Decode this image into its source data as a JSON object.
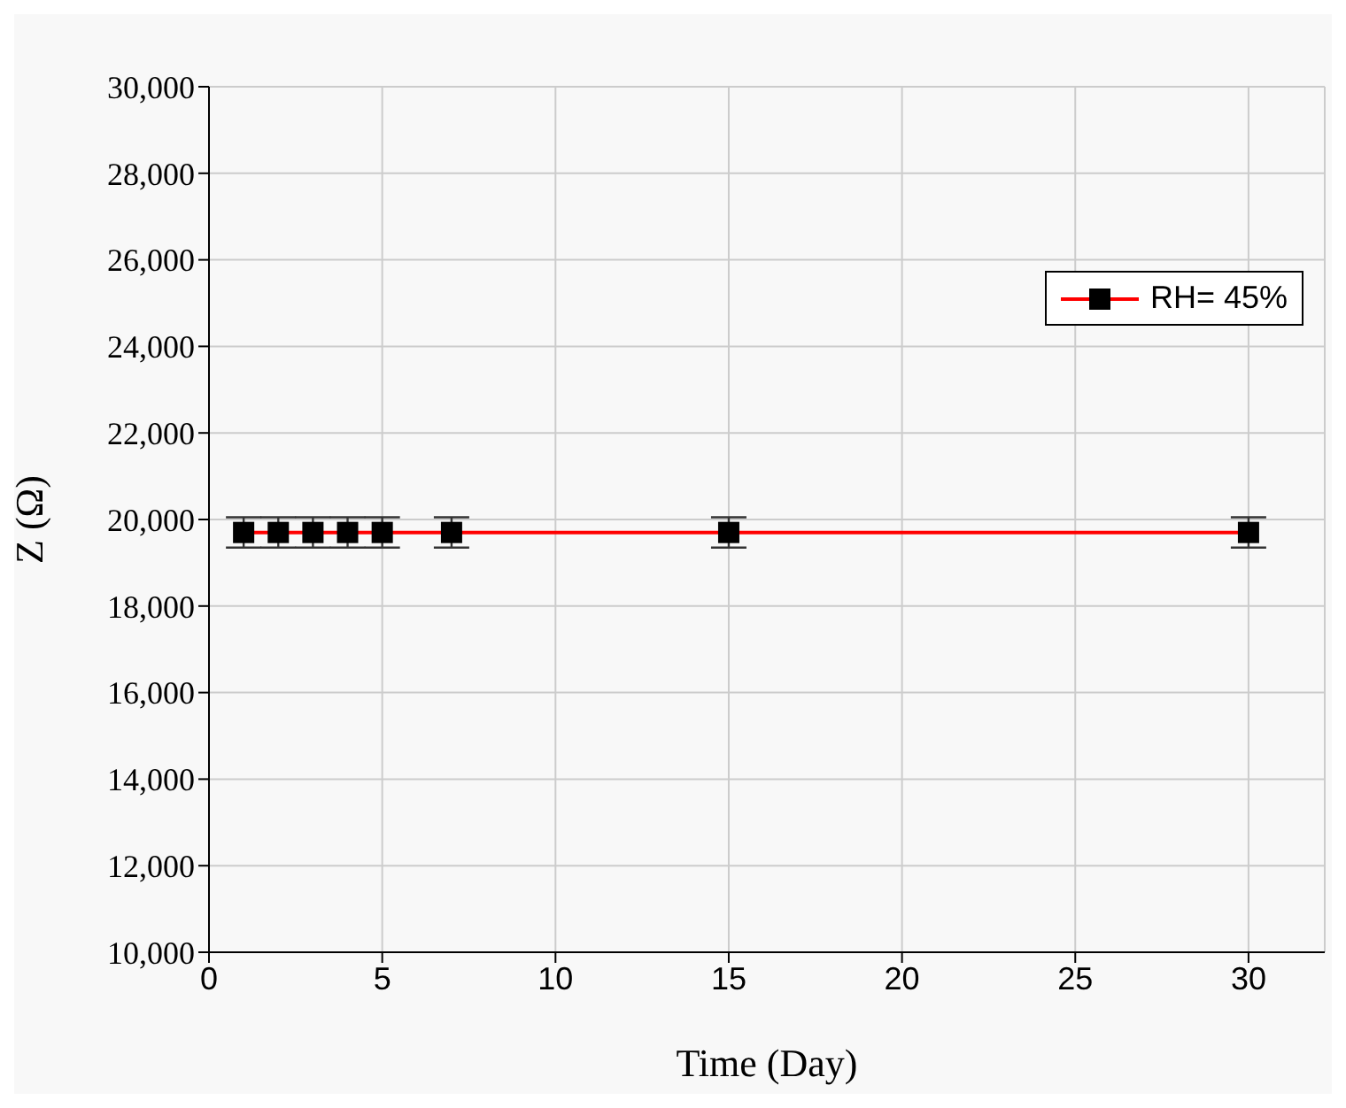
{
  "chart_data": {
    "type": "line",
    "xlabel": "Time (Day)",
    "ylabel": "Z (Ω)",
    "x": [
      1,
      2,
      3,
      4,
      5,
      7,
      15,
      30
    ],
    "series": [
      {
        "name": "RH= 45%",
        "color": "#ff0000",
        "values": [
          19700,
          19700,
          19700,
          19700,
          19700,
          19700,
          19700,
          19700
        ],
        "errors": [
          350,
          350,
          350,
          350,
          350,
          350,
          350,
          350
        ]
      }
    ],
    "xlim": [
      0,
      32.2
    ],
    "xticks": [
      0,
      5,
      10,
      15,
      20,
      25,
      30
    ],
    "ylim": [
      10000,
      30000
    ],
    "yticks": [
      {
        "value": 10000,
        "label": "10,000"
      },
      {
        "value": 12000,
        "label": "12,000"
      },
      {
        "value": 14000,
        "label": "14,000"
      },
      {
        "value": 16000,
        "label": "16,000"
      },
      {
        "value": 18000,
        "label": "18,000"
      },
      {
        "value": 20000,
        "label": "20,000"
      },
      {
        "value": 22000,
        "label": "22,000"
      },
      {
        "value": 24000,
        "label": "24,000"
      },
      {
        "value": 26000,
        "label": "26,000"
      },
      {
        "value": 28000,
        "label": "28,000"
      },
      {
        "value": 30000,
        "label": "30,000"
      }
    ],
    "grid": true,
    "legend": "top right",
    "marker": "square",
    "line_style": "solid"
  }
}
